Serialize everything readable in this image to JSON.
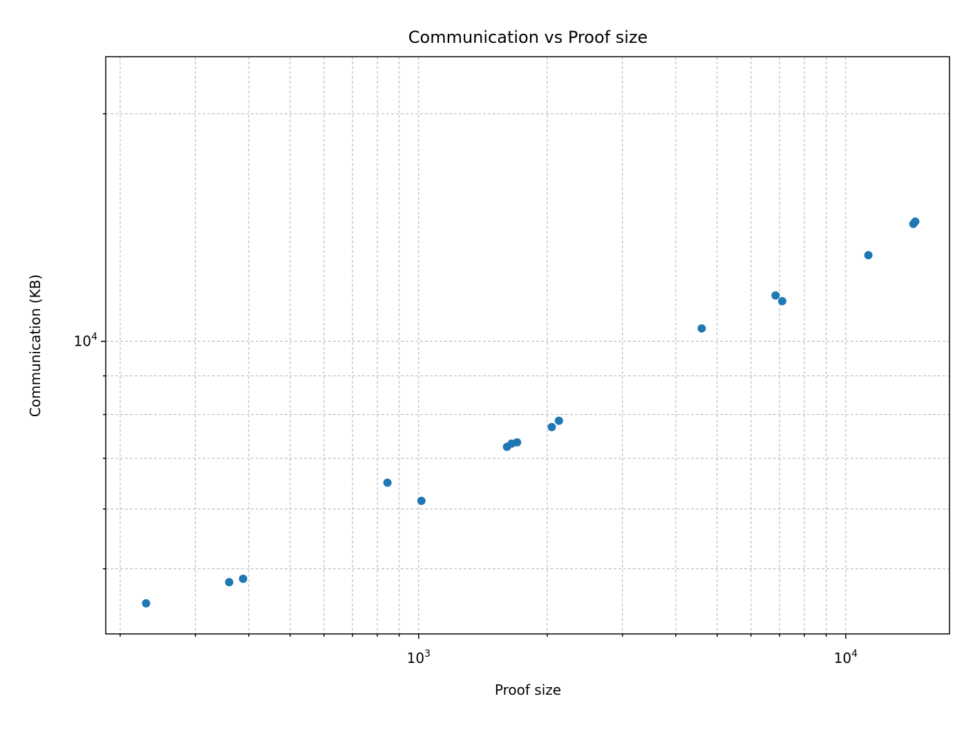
{
  "chart_data": {
    "type": "scatter",
    "title": "Communication vs Proof size",
    "xlabel": "Proof size",
    "ylabel": "Communication (KB)",
    "xscale": "log",
    "yscale": "log",
    "xlim": [
      185,
      17500
    ],
    "ylim": [
      4100,
      23800
    ],
    "grid": true,
    "grid_which": "both",
    "x_ticks": [
      {
        "base": "10",
        "exp": "3",
        "value": 1000
      },
      {
        "base": "10",
        "exp": "4",
        "value": 10000
      }
    ],
    "y_ticks": [
      {
        "base": "10",
        "exp": "4",
        "value": 10000
      }
    ],
    "marker_color": "#1f77b4",
    "series": [
      {
        "points": [
          {
            "x": 230,
            "y": 4500
          },
          {
            "x": 360,
            "y": 4800
          },
          {
            "x": 388,
            "y": 4850
          },
          {
            "x": 845,
            "y": 6500
          },
          {
            "x": 1015,
            "y": 6150
          },
          {
            "x": 1610,
            "y": 7250
          },
          {
            "x": 1650,
            "y": 7320
          },
          {
            "x": 1700,
            "y": 7350
          },
          {
            "x": 2050,
            "y": 7700
          },
          {
            "x": 2130,
            "y": 7850
          },
          {
            "x": 4600,
            "y": 10400
          },
          {
            "x": 6850,
            "y": 11500
          },
          {
            "x": 7100,
            "y": 11300
          },
          {
            "x": 11300,
            "y": 13000
          },
          {
            "x": 14400,
            "y": 14300
          },
          {
            "x": 14550,
            "y": 14400
          }
        ]
      }
    ]
  }
}
